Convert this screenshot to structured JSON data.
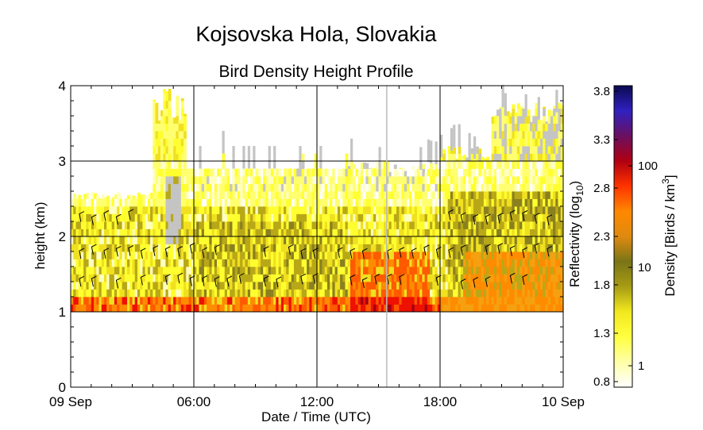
{
  "chart_data": {
    "type": "heatmap",
    "title": "Kojsovska Hola, Slovakia",
    "subtitle": "Bird Density Height Profile",
    "xlabel": "Date / Time (UTC)",
    "ylabel": "height (km)",
    "x_tick_labels": [
      "09 Sep",
      "06:00",
      "12:00",
      "18:00",
      "10 Sep"
    ],
    "x_tick_hours": [
      0,
      6,
      12,
      18,
      24
    ],
    "xlim": [
      0,
      24
    ],
    "ylim": [
      0,
      4
    ],
    "y_ticks": [
      0,
      1,
      2,
      3,
      4
    ],
    "grid": true,
    "data_range_km": [
      1.0,
      4.0
    ],
    "colorbar": {
      "left_label": "Reflectivity (log10)",
      "left_label_base": "Reflectivity (log",
      "left_label_sub": "10",
      "left_label_end": ")",
      "left_ticks": [
        "0.8",
        "1.3",
        "1.8",
        "2.3",
        "2.8",
        "3.3",
        "3.8"
      ],
      "right_label": "Density [Birds / km3]",
      "right_label_base": "Density [Birds / km",
      "right_label_sup": "3",
      "right_label_end": "]",
      "right_ticks": [
        "1",
        "10",
        "100"
      ],
      "colors": [
        "#ffffff",
        "#ffffa8",
        "#ffff40",
        "#f2e81e",
        "#a79c14",
        "#7a7418",
        "#e08a10",
        "#ff8800",
        "#ff3300",
        "#b00010",
        "#6a1060",
        "#3020c0",
        "#0a0a50"
      ]
    },
    "no_data_color": "#c4c4c4",
    "profile_summary": [
      {
        "period": "00:00-04:00",
        "top_km": 2.5,
        "dominant": "yellow",
        "low_level": "orange"
      },
      {
        "period": "04:30-05:30",
        "top_km": 4.0,
        "dominant": "yellow with gray gaps"
      },
      {
        "period": "06:00-13:30",
        "top_km": 3.0,
        "dominant": "yellow-olive"
      },
      {
        "period": "13:30-16:30",
        "top_km": 3.0,
        "dominant": "orange-red near surface"
      },
      {
        "period": "18:00-24:00",
        "top_km": 3.8,
        "dominant": "yellow-olive with orange low levels"
      }
    ],
    "wind_barbs": "present at ~1.4 km, ~1.8 km and ~2.2-2.8 km levels"
  }
}
